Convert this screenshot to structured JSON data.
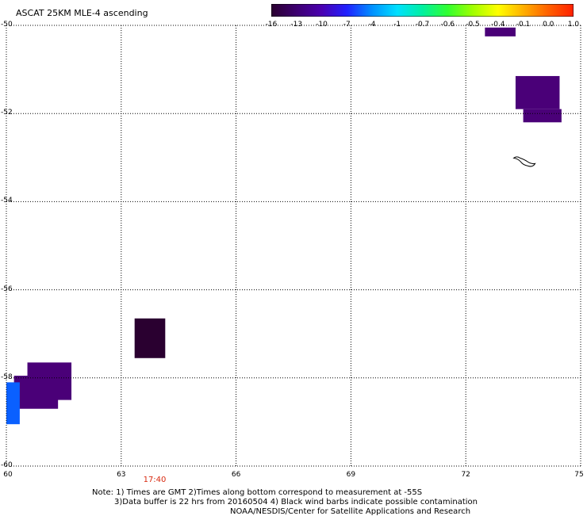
{
  "title": "ASCAT 25KM MLE-4 ascending",
  "colorbar": {
    "labels": [
      "-16",
      "-13",
      "-10",
      "-7",
      "-4",
      "-1",
      "-0.7",
      "-0.6",
      "-0.5",
      "-0.4",
      "-0.1",
      "0.0",
      "1.0"
    ],
    "colors": [
      "#2a0030",
      "#3d0070",
      "#4a00b0",
      "#2020ff",
      "#0090ff",
      "#00e0ff",
      "#00f0a0",
      "#30ff30",
      "#a0ff00",
      "#ffff00",
      "#ffb000",
      "#ff6000",
      "#ff2000"
    ]
  },
  "map_data": {
    "lon_range": [
      60,
      75
    ],
    "lat_range": [
      -60,
      -50
    ],
    "lon_ticks": [
      "60",
      "63",
      "66",
      "69",
      "72",
      "75"
    ],
    "lat_ticks": [
      "-50",
      "-52",
      "-54",
      "-56",
      "-58",
      "-60"
    ],
    "grid": "dotted",
    "cells": [
      {
        "lon": [
          72.5,
          73.3
        ],
        "lat": [
          -50.05,
          -50.25
        ],
        "color": "#4a0078"
      },
      {
        "lon": [
          73.3,
          74.45
        ],
        "lat": [
          -51.15,
          -51.9
        ],
        "color": "#4a0078"
      },
      {
        "lon": [
          73.5,
          74.5
        ],
        "lat": [
          -51.9,
          -52.2
        ],
        "color": "#4a0078"
      },
      {
        "lon": [
          63.35,
          64.15
        ],
        "lat": [
          -56.65,
          -57.55
        ],
        "color": "#2a0030"
      },
      {
        "lon": [
          60.55,
          61.7
        ],
        "lat": [
          -57.65,
          -58.5
        ],
        "color": "#4a0078"
      },
      {
        "lon": [
          60.2,
          61.35
        ],
        "lat": [
          -57.95,
          -58.7
        ],
        "color": "#4a0078"
      },
      {
        "lon": [
          60.0,
          60.35
        ],
        "lat": [
          -58.1,
          -59.05
        ],
        "color": "#0a60ff"
      }
    ],
    "coastline_label": "island"
  },
  "time_label": "17:40",
  "notes": [
    "Note: 1) Times are GMT 2)Times along bottom correspond to measurement at -55S",
    "3)Data buffer is 22 hrs from 20160504 4) Black wind barbs indicate possible contamination",
    "NOAA/NESDIS/Center for Satellite Applications and Research"
  ]
}
